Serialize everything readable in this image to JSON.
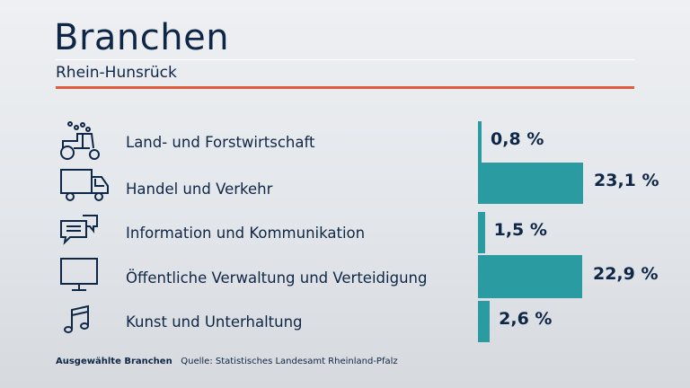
{
  "header": {
    "title": "Branchen",
    "subtitle": "Rhein-Hunsrück"
  },
  "colors": {
    "bar": "#2a9ba0",
    "text": "#0f2747",
    "accent_line": "#e05a3d"
  },
  "chart_data": {
    "type": "bar",
    "orientation": "horizontal",
    "title": "Branchen",
    "subtitle": "Rhein-Hunsrück",
    "unit": "%",
    "categories": [
      "Land- und Forstwirtschaft",
      "Handel und Verkehr",
      "Information und Kommunikation",
      "Öffentliche Verwaltung und Verteidigung",
      "Kunst und Unterhaltung"
    ],
    "values": [
      0.8,
      23.1,
      1.5,
      22.9,
      2.6
    ],
    "value_labels": [
      "0,8 %",
      "23,1 %",
      "1,5 %",
      "22,9 %",
      "2,6 %"
    ],
    "icons": [
      "tractor-icon",
      "truck-icon",
      "chat-bubbles-icon",
      "monitor-icon",
      "music-note-icon"
    ],
    "grid": false,
    "legend": "none"
  },
  "footer": {
    "label": "Ausgewählte Branchen",
    "source": "Quelle: Statistisches Landesamt Rheinland-Pfalz"
  }
}
